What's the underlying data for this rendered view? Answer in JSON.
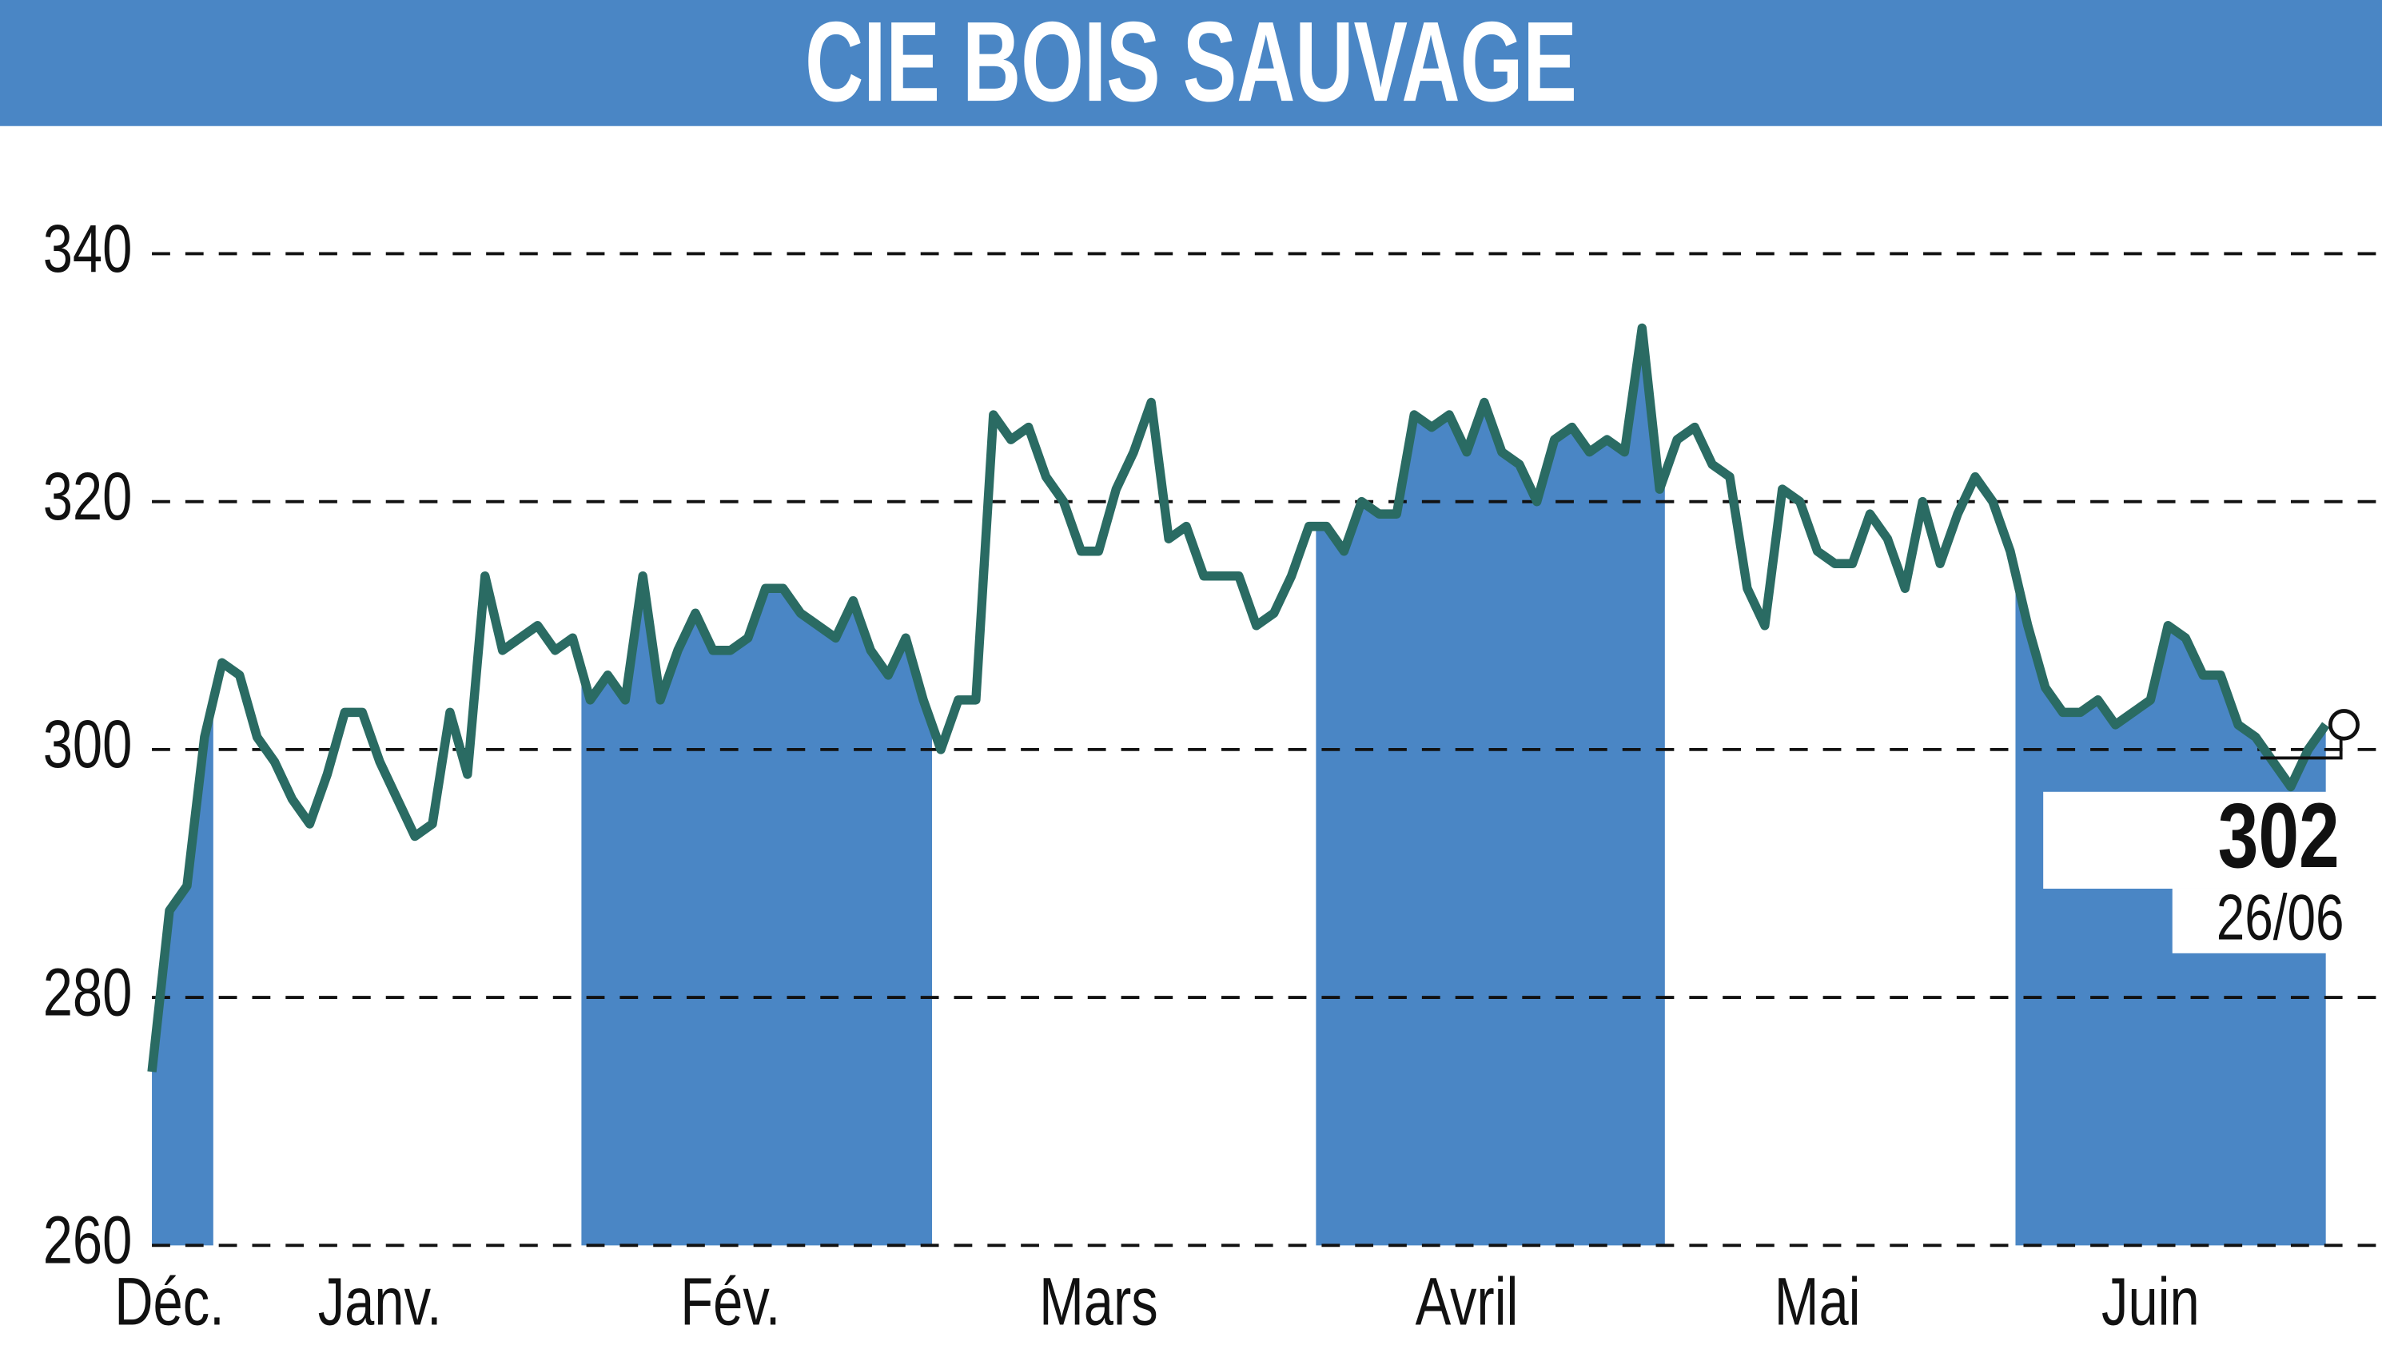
{
  "chart_data": {
    "type": "line",
    "title": "CIE BOIS SAUVAGE",
    "categories": [
      null,
      "Déc.",
      null,
      null,
      null,
      null,
      null,
      null,
      null,
      null,
      null,
      null,
      null,
      "Janv.",
      null,
      null,
      null,
      null,
      null,
      null,
      null,
      null,
      null,
      null,
      null,
      null,
      null,
      null,
      null,
      null,
      null,
      null,
      null,
      "Fév.",
      null,
      null,
      null,
      null,
      null,
      null,
      null,
      null,
      null,
      null,
      null,
      null,
      null,
      null,
      null,
      null,
      null,
      null,
      null,
      null,
      "Mars",
      null,
      null,
      null,
      null,
      null,
      null,
      null,
      null,
      null,
      null,
      null,
      null,
      null,
      null,
      null,
      null,
      null,
      null,
      null,
      null,
      "Avril",
      null,
      null,
      null,
      null,
      null,
      null,
      null,
      null,
      null,
      null,
      null,
      null,
      null,
      null,
      null,
      null,
      null,
      null,
      null,
      "Mai",
      null,
      null,
      null,
      null,
      null,
      null,
      null,
      null,
      null,
      null,
      null,
      null,
      null,
      null,
      null,
      null,
      null,
      null,
      "Juin",
      null,
      null,
      null,
      null,
      null,
      null,
      null,
      null,
      null,
      null
    ],
    "series": [
      {
        "color": "#2a6b63",
        "area_color": "#4a86c5",
        "values": [
          274,
          287,
          289,
          301,
          307,
          306,
          301,
          299,
          296,
          294,
          298,
          303,
          303,
          299,
          296,
          293,
          294,
          303,
          298,
          314,
          308,
          309,
          310,
          308,
          309,
          304,
          306,
          304,
          314,
          304,
          308,
          311,
          308,
          308,
          309,
          313,
          313,
          311,
          310,
          309,
          312,
          308,
          306,
          309,
          304,
          300,
          304,
          304,
          327,
          325,
          326,
          322,
          320,
          316,
          316,
          321,
          324,
          328,
          317,
          318,
          314,
          314,
          314,
          310,
          311,
          314,
          318,
          318,
          316,
          320,
          319,
          319,
          327,
          326,
          327,
          324,
          328,
          324,
          323,
          320,
          325,
          326,
          324,
          325,
          324,
          334,
          321,
          325,
          326,
          323,
          322,
          313,
          310,
          321,
          320,
          316,
          315,
          315,
          319,
          317,
          313,
          320,
          315,
          319,
          322,
          320,
          316,
          310,
          305,
          303,
          303,
          304,
          302,
          303,
          304,
          310,
          309,
          306,
          306,
          302,
          301,
          299,
          297,
          300,
          302
        ]
      }
    ],
    "last_date": "26/06",
    "ylim": [
      260,
      340
    ],
    "yticks": [
      260,
      280,
      300,
      320,
      340
    ],
    "grid": true
  }
}
